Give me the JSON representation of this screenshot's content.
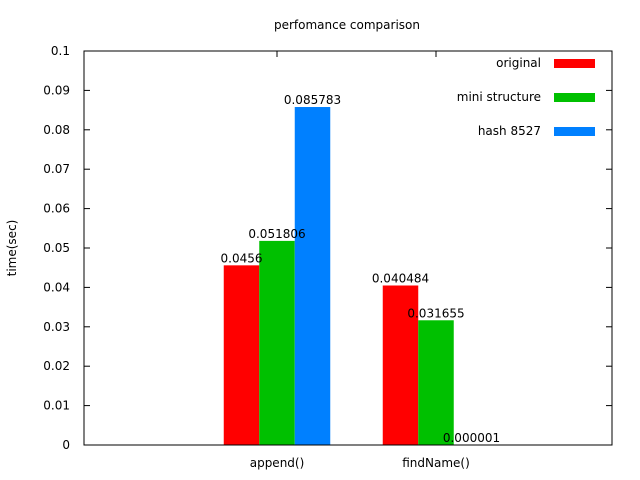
{
  "chart_data": {
    "type": "bar",
    "title": "perfomance comparison",
    "xlabel": "",
    "ylabel": "time(sec)",
    "ylim": [
      0,
      0.1
    ],
    "yticks": [
      "0",
      "0.01",
      "0.02",
      "0.03",
      "0.04",
      "0.05",
      "0.06",
      "0.07",
      "0.08",
      "0.09",
      "0.1"
    ],
    "categories": [
      "append()",
      "findName()"
    ],
    "series": [
      {
        "name": "original",
        "color": "#ff0000",
        "values": [
          0.0456,
          0.040484
        ],
        "labels": [
          "0.0456",
          "0.040484"
        ]
      },
      {
        "name": "mini structure",
        "color": "#00c000",
        "values": [
          0.051806,
          0.031655
        ],
        "labels": [
          "0.051806",
          "0.031655"
        ]
      },
      {
        "name": "hash 8527",
        "color": "#0080ff",
        "values": [
          0.085783,
          1e-06
        ],
        "labels": [
          "0.085783",
          "0.000001"
        ]
      }
    ],
    "grid": false,
    "legend_position": "top-right"
  }
}
